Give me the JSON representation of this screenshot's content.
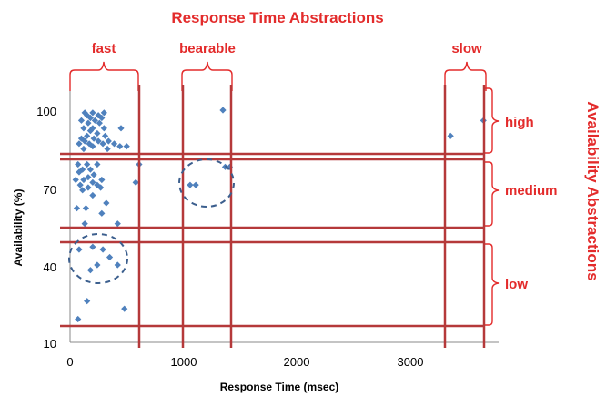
{
  "chart_data": {
    "type": "scatter",
    "title": "Response Time Abstractions",
    "xlabel": "Response Time (msec)",
    "ylabel": "Availability (%)",
    "right_title": "Availability Abstractions",
    "xlim": [
      0,
      3800
    ],
    "ylim": [
      10,
      100
    ],
    "x_ticks": [
      "0",
      "1000",
      "2000",
      "3000"
    ],
    "y_ticks": [
      "10",
      "40",
      "70",
      "100"
    ],
    "grid": false,
    "response_time_categories": [
      {
        "label": "fast",
        "from": 0,
        "to": 620
      },
      {
        "label": "bearable",
        "from": 1000,
        "to": 1420
      },
      {
        "label": "slow",
        "from": 3310,
        "to": 3640
      }
    ],
    "availability_categories": [
      {
        "label": "high",
        "from": 83,
        "to": 100
      },
      {
        "label": "medium",
        "from": 53,
        "to": 83
      },
      {
        "label": "low",
        "from": 17,
        "to": 50
      }
    ],
    "series": [
      {
        "color": "#4f81bd",
        "points": [
          [
            130,
            99
          ],
          [
            200,
            99
          ],
          [
            300,
            99
          ],
          [
            150,
            98
          ],
          [
            250,
            98
          ],
          [
            180,
            97
          ],
          [
            280,
            97
          ],
          [
            100,
            96
          ],
          [
            220,
            96
          ],
          [
            160,
            95
          ],
          [
            260,
            95
          ],
          [
            120,
            93
          ],
          [
            200,
            93
          ],
          [
            300,
            93
          ],
          [
            450,
            93
          ],
          [
            180,
            92
          ],
          [
            240,
            91
          ],
          [
            150,
            90
          ],
          [
            310,
            90
          ],
          [
            100,
            89
          ],
          [
            210,
            89
          ],
          [
            130,
            88
          ],
          [
            250,
            88
          ],
          [
            340,
            88
          ],
          [
            80,
            87
          ],
          [
            170,
            87
          ],
          [
            290,
            87
          ],
          [
            390,
            87
          ],
          [
            200,
            86
          ],
          [
            440,
            86
          ],
          [
            500,
            86
          ],
          [
            120,
            85
          ],
          [
            330,
            85
          ],
          [
            70,
            79
          ],
          [
            150,
            79
          ],
          [
            240,
            79
          ],
          [
            110,
            77
          ],
          [
            180,
            77
          ],
          [
            80,
            76
          ],
          [
            210,
            75
          ],
          [
            160,
            74
          ],
          [
            50,
            73
          ],
          [
            120,
            73
          ],
          [
            280,
            73
          ],
          [
            200,
            72
          ],
          [
            90,
            71
          ],
          [
            240,
            71
          ],
          [
            160,
            70
          ],
          [
            270,
            70
          ],
          [
            110,
            69
          ],
          [
            200,
            67
          ],
          [
            320,
            64
          ],
          [
            60,
            62
          ],
          [
            140,
            62
          ],
          [
            280,
            60
          ],
          [
            130,
            56
          ],
          [
            420,
            56
          ],
          [
            200,
            47
          ],
          [
            80,
            46
          ],
          [
            290,
            46
          ],
          [
            350,
            43
          ],
          [
            240,
            40
          ],
          [
            420,
            40
          ],
          [
            180,
            38
          ],
          [
            150,
            26
          ],
          [
            480,
            23
          ],
          [
            70,
            19
          ],
          [
            610,
            79
          ],
          [
            580,
            72
          ],
          [
            1060,
            71
          ],
          [
            1110,
            71
          ],
          [
            1370,
            78
          ],
          [
            1410,
            78
          ],
          [
            1350,
            100
          ],
          [
            3360,
            90
          ],
          [
            3650,
            96
          ]
        ]
      }
    ]
  }
}
